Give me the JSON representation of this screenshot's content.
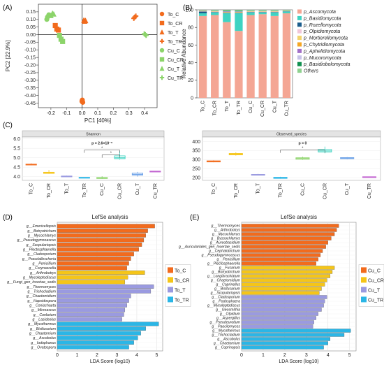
{
  "panels": {
    "A": "(A)",
    "B": "(B)",
    "C": "(C)",
    "D": "(D)",
    "E": "(E)"
  },
  "colors": {
    "To_C": "#f26b1d",
    "To_CR": "#f5c518",
    "To_T": "#9a9ae0",
    "To_TR": "#2bb6e6",
    "Cu_green": "#8cd46a",
    "Cu_C": "#f26b1d",
    "Cu_CR": "#f5c518",
    "Cu_T": "#9a9ae0",
    "Cu_TR": "#2bb6e6"
  },
  "chart_data": [
    {
      "type": "scatter",
      "panel": "A",
      "xlabel": "PC1 [40%]",
      "ylabel": "PC2 [22.9%]",
      "xlim": [
        -0.28,
        0.48
      ],
      "ylim": [
        -0.48,
        0.2
      ],
      "xticks": [
        "-0.2",
        "-0.1",
        "0.0",
        "0.1",
        "0.2",
        "0.3",
        "0.4"
      ],
      "xtick_values": [
        -0.2,
        -0.1,
        0.0,
        0.1,
        0.2,
        0.3,
        0.4
      ],
      "yticks": [
        "0.15",
        "0.10",
        "0.05",
        "0.00",
        "-0.05",
        "-0.10",
        "-0.15",
        "-0.20",
        "-0.25",
        "-0.30",
        "-0.35",
        "-0.40",
        "-0.45"
      ],
      "ytick_values": [
        0.15,
        0.1,
        0.05,
        0.0,
        -0.05,
        -0.1,
        -0.15,
        -0.2,
        -0.25,
        -0.3,
        -0.35,
        -0.4,
        -0.45
      ],
      "series": [
        {
          "name": "To_C",
          "marker": "circle",
          "color": "#f26b1d",
          "points": [
            [
              0.001,
              -0.43
            ],
            [
              0.004,
              -0.445
            ],
            [
              -0.001,
              -0.438
            ]
          ]
        },
        {
          "name": "To_CR",
          "marker": "square",
          "color": "#f26b1d",
          "points": [
            [
              -0.172,
              0.06
            ],
            [
              -0.162,
              0.036
            ],
            [
              -0.152,
              0.03
            ]
          ]
        },
        {
          "name": "To_T",
          "marker": "triangle",
          "color": "#f26b1d",
          "points": [
            [
              0.011,
              0.095
            ],
            [
              0.022,
              0.092
            ],
            [
              0.016,
              0.088
            ]
          ]
        },
        {
          "name": "To_TR",
          "marker": "plus",
          "color": "#f26b1d",
          "points": [
            [
              0.337,
              0.115
            ],
            [
              0.344,
              0.122
            ],
            [
              0.331,
              0.107
            ]
          ]
        },
        {
          "name": "Cu_C",
          "marker": "circle",
          "color": "#8cd46a",
          "points": [
            [
              -0.222,
              0.115
            ],
            [
              -0.226,
              0.1
            ],
            [
              -0.213,
              0.13
            ]
          ]
        },
        {
          "name": "Cu_CR",
          "marker": "square",
          "color": "#8cd46a",
          "points": [
            [
              -0.145,
              -0.005
            ],
            [
              -0.135,
              -0.03
            ],
            [
              -0.125,
              -0.045
            ]
          ]
        },
        {
          "name": "Cu_T",
          "marker": "triangle",
          "color": "#8cd46a",
          "points": [
            [
              -0.19,
              0.14
            ],
            [
              -0.182,
              0.135
            ],
            [
              -0.2,
              0.125
            ]
          ]
        },
        {
          "name": "Cu_TR",
          "marker": "plus",
          "color": "#8cd46a",
          "points": [
            [
              0.398,
              0.005
            ],
            [
              0.41,
              -0.005
            ],
            [
              0.404,
              0.0
            ]
          ]
        }
      ]
    },
    {
      "type": "bar",
      "stacked": true,
      "panel": "B",
      "ylabel": "Relative Abundance",
      "ylim": [
        0,
        100
      ],
      "yticks": [
        "0",
        "20",
        "40",
        "60",
        "80",
        "100"
      ],
      "ytick_values": [
        0,
        20,
        40,
        60,
        80,
        100
      ],
      "categories": [
        "To_C",
        "To_CR",
        "To_T",
        "To_TR",
        "Cu_C",
        "Cu_CR",
        "Cu_T",
        "Cu_TR"
      ],
      "series": [
        {
          "name": "p_Ascomycota",
          "color": "#f4a694",
          "values": [
            93,
            94,
            86,
            76,
            94,
            95,
            93,
            96
          ]
        },
        {
          "name": "p_Basidiomycota",
          "color": "#3fd3c2",
          "values": [
            3,
            3,
            10,
            20,
            3,
            2,
            4,
            2
          ]
        },
        {
          "name": "p_Rozellomycota",
          "color": "#1b5c8c",
          "values": [
            2,
            0.5,
            0.5,
            0.5,
            0.5,
            0.5,
            0.5,
            0.3
          ]
        },
        {
          "name": "p_Olpidiomycota",
          "color": "#f0c6d8",
          "values": [
            0.3,
            0.3,
            0.3,
            0.3,
            0.3,
            0.3,
            0.3,
            0.2
          ]
        },
        {
          "name": "p_Mortierellomycota",
          "color": "#f2d36b",
          "values": [
            0.3,
            0.3,
            0.5,
            0.5,
            0.3,
            0.3,
            0.3,
            0.2
          ]
        },
        {
          "name": "p_Chytridiomycota",
          "color": "#f5a623",
          "values": [
            0.2,
            0.2,
            0.3,
            0.3,
            0.2,
            0.2,
            0.2,
            0.1
          ]
        },
        {
          "name": "p_Aphelidiomycota",
          "color": "#a36fc8",
          "values": [
            0.2,
            0.2,
            0.4,
            0.3,
            0.2,
            0.2,
            0.2,
            0.1
          ]
        },
        {
          "name": "p_Mucoromycota",
          "color": "#c7c2e8",
          "values": [
            0.2,
            0.2,
            0.3,
            0.3,
            0.2,
            0.2,
            0.2,
            0.1
          ]
        },
        {
          "name": "p_Basidiobolomycota",
          "color": "#0f8f4e",
          "values": [
            0.3,
            0.3,
            0.7,
            0.8,
            0.3,
            0.3,
            0.3,
            0.2
          ]
        },
        {
          "name": "Others",
          "color": "#8ed18f",
          "values": [
            0.5,
            1.0,
            1.0,
            1.0,
            1.0,
            1.0,
            1.0,
            0.8
          ]
        }
      ]
    },
    {
      "type": "box",
      "panel": "C-left",
      "title": "Shannon",
      "ylim": [
        3.8,
        6.1
      ],
      "yticks": [
        "4.0",
        "4.5",
        "5.0",
        "5.5",
        "6.0"
      ],
      "ytick_values": [
        4.0,
        4.5,
        5.0,
        5.5,
        6.0
      ],
      "categories": [
        "To_C",
        "To_CR",
        "To_T",
        "To_TR",
        "Cu_C",
        "Cu_CR",
        "Cu_T",
        "Cu_TR"
      ],
      "colors": [
        "#f26b1d",
        "#f5c518",
        "#9a9ae0",
        "#2bb6e6",
        "#8cd46a",
        "#3fd3c2",
        "#6fa3e8",
        "#c060d0"
      ],
      "boxes": [
        {
          "min": 4.6,
          "q1": 4.62,
          "median": 4.64,
          "q3": 4.66,
          "max": 4.7
        },
        {
          "min": 4.15,
          "q1": 4.17,
          "median": 4.2,
          "q3": 4.23,
          "max": 4.35
        },
        {
          "min": 4.0,
          "q1": 4.01,
          "median": 4.02,
          "q3": 4.03,
          "max": 4.05
        },
        {
          "min": 3.93,
          "q1": 3.94,
          "median": 3.95,
          "q3": 3.96,
          "max": 3.97
        },
        {
          "min": 3.88,
          "q1": 3.9,
          "median": 3.92,
          "q3": 3.95,
          "max": 4.02
        },
        {
          "min": 4.9,
          "q1": 4.95,
          "median": 5.0,
          "q3": 5.1,
          "max": 5.35
        },
        {
          "min": 4.0,
          "q1": 4.08,
          "median": 4.12,
          "q3": 4.18,
          "max": 4.25
        },
        {
          "min": 4.26,
          "q1": 4.27,
          "median": 4.28,
          "q3": 4.29,
          "max": 4.3
        }
      ],
      "annotation": "p = 2.6×10⁻⁶",
      "sig_marks": [
        "*",
        "*"
      ]
    },
    {
      "type": "box",
      "panel": "C-right",
      "title": "Observed_species",
      "ylim": [
        185,
        425
      ],
      "yticks": [
        "200",
        "250",
        "300",
        "350",
        "400"
      ],
      "ytick_values": [
        200,
        250,
        300,
        350,
        400
      ],
      "categories": [
        "To_C",
        "To_CR",
        "To_T",
        "To_TR",
        "Cu_C",
        "Cu_CR",
        "Cu_T",
        "Cu_TR"
      ],
      "colors": [
        "#f26b1d",
        "#f5c518",
        "#9a9ae0",
        "#2bb6e6",
        "#8cd46a",
        "#3fd3c2",
        "#6fa3e8",
        "#c060d0"
      ],
      "boxes": [
        {
          "min": 285,
          "q1": 287,
          "median": 290,
          "q3": 293,
          "max": 296
        },
        {
          "min": 322,
          "q1": 326,
          "median": 330,
          "q3": 334,
          "max": 340
        },
        {
          "min": 212,
          "q1": 214,
          "median": 216,
          "q3": 218,
          "max": 221
        },
        {
          "min": 194,
          "q1": 196,
          "median": 199,
          "q3": 202,
          "max": 205
        },
        {
          "min": 298,
          "q1": 302,
          "median": 306,
          "q3": 310,
          "max": 316
        },
        {
          "min": 335,
          "q1": 342,
          "median": 348,
          "q3": 356,
          "max": 372
        },
        {
          "min": 302,
          "q1": 305,
          "median": 308,
          "q3": 311,
          "max": 314
        },
        {
          "min": 202,
          "q1": 203,
          "median": 204,
          "q3": 205,
          "max": 206
        }
      ],
      "annotation": "p = 0",
      "sig_marks": [
        "*"
      ]
    },
    {
      "type": "bar",
      "orientation": "horizontal",
      "panel": "D",
      "title": "LefSe analysis",
      "xlabel": "LDA Score (log10)",
      "xlim": [
        0,
        5.3
      ],
      "xticks": [
        "0",
        "1",
        "2",
        "3",
        "4",
        "5"
      ],
      "xtick_values": [
        0,
        1,
        2,
        3,
        4,
        5
      ],
      "legend": [
        "To_C",
        "To_CR",
        "To_T",
        "To_TR"
      ],
      "legend_colors": [
        "#f26b1d",
        "#f5c518",
        "#9a9ae0",
        "#2bb6e6"
      ],
      "bars": [
        {
          "label": "g__Emericellopsis",
          "group": 0,
          "value": 4.9
        },
        {
          "label": "g__Botryotrichum",
          "group": 0,
          "value": 4.55
        },
        {
          "label": "g__Mycochlamys",
          "group": 0,
          "value": 4.45
        },
        {
          "label": "g__Pseudogymnoascus",
          "group": 0,
          "value": 4.35
        },
        {
          "label": "g__Scopulariopsis",
          "group": 0,
          "value": 4.25
        },
        {
          "label": "g__Plectosphaerella",
          "group": 0,
          "value": 4.1
        },
        {
          "label": "g__Cladosporium",
          "group": 0,
          "value": 3.85
        },
        {
          "label": "g__Pseudallescheria",
          "group": 0,
          "value": 3.7
        },
        {
          "label": "g__Penicillium",
          "group": 0,
          "value": 3.6
        },
        {
          "label": "g__Corynascella",
          "group": 0,
          "value": 3.5
        },
        {
          "label": "g__Arthrobotrys",
          "group": 1,
          "value": 4.4
        },
        {
          "label": "g__Mycoleptodiscus",
          "group": 1,
          "value": 3.55
        },
        {
          "label": "g__Fungi_gen_Incertae_sedis",
          "group": 1,
          "value": 3.4
        },
        {
          "label": "g__Thermomyces",
          "group": 2,
          "value": 4.85
        },
        {
          "label": "g__Trichocladium",
          "group": 2,
          "value": 4.7
        },
        {
          "label": "g__Chaetomidium",
          "group": 2,
          "value": 3.7
        },
        {
          "label": "g__Hapsidospora",
          "group": 2,
          "value": 3.6
        },
        {
          "label": "g__Coniochaeta",
          "group": 2,
          "value": 3.5
        },
        {
          "label": "g__Microascus",
          "group": 2,
          "value": 3.4
        },
        {
          "label": "g__Conlarium",
          "group": 2,
          "value": 3.35
        },
        {
          "label": "g__Lasiobolus",
          "group": 2,
          "value": 3.25
        },
        {
          "label": "g__Mycothermus",
          "group": 3,
          "value": 5.1
        },
        {
          "label": "g__Bisifusarium",
          "group": 3,
          "value": 4.45
        },
        {
          "label": "g__Chaetomium",
          "group": 3,
          "value": 4.2
        },
        {
          "label": "g__Ascobolus",
          "group": 3,
          "value": 4.05
        },
        {
          "label": "g__Iodophanus",
          "group": 3,
          "value": 3.85
        },
        {
          "label": "g__Ovatospora",
          "group": 3,
          "value": 3.6
        }
      ]
    },
    {
      "type": "bar",
      "orientation": "horizontal",
      "panel": "E",
      "title": "LefSe analysis",
      "xlabel": "LDA Score (log10)",
      "xlim": [
        0,
        5.3
      ],
      "xticks": [
        "0",
        "1",
        "2",
        "3",
        "4",
        "5"
      ],
      "xtick_values": [
        0,
        1,
        2,
        3,
        4,
        5
      ],
      "legend": [
        "Cu_C",
        "Cu_CR",
        "Cu_T",
        "Cu_TR"
      ],
      "legend_colors": [
        "#f26b1d",
        "#f5c518",
        "#9a9ae0",
        "#2bb6e6"
      ],
      "bars": [
        {
          "label": "g__Thermomyces",
          "group": 0,
          "value": 4.5
        },
        {
          "label": "g__Arthrobotrys",
          "group": 0,
          "value": 4.4
        },
        {
          "label": "g__Mycochlamys",
          "group": 0,
          "value": 4.3
        },
        {
          "label": "g__Byssochlamys",
          "group": 0,
          "value": 4.15
        },
        {
          "label": "g__Aureobasidium",
          "group": 0,
          "value": 4.0
        },
        {
          "label": "g__Auriculariales_gen_Incertae_sedis",
          "group": 0,
          "value": 3.9
        },
        {
          "label": "g__Cephalotrichum",
          "group": 0,
          "value": 3.75
        },
        {
          "label": "g__Pseudogymnoascus",
          "group": 0,
          "value": 3.65
        },
        {
          "label": "g__Penicillium",
          "group": 0,
          "value": 3.55
        },
        {
          "label": "g__Plectosphaerella",
          "group": 0,
          "value": 3.45
        },
        {
          "label": "g__Fusarium",
          "group": 1,
          "value": 4.3
        },
        {
          "label": "g__Botryotrichum",
          "group": 1,
          "value": 4.2
        },
        {
          "label": "g__Longibrachiatum",
          "group": 1,
          "value": 4.1
        },
        {
          "label": "g__Chaetomidium",
          "group": 1,
          "value": 3.95
        },
        {
          "label": "g__Coprinellus",
          "group": 1,
          "value": 3.85
        },
        {
          "label": "g__Bisifusarium",
          "group": 1,
          "value": 3.7
        },
        {
          "label": "g__Scopulariopsis",
          "group": 1,
          "value": 3.6
        },
        {
          "label": "g__Cladosporium",
          "group": 2,
          "value": 3.95
        },
        {
          "label": "g__Podosphaera",
          "group": 2,
          "value": 3.85
        },
        {
          "label": "g__Mycoleptodiscus",
          "group": 2,
          "value": 3.8
        },
        {
          "label": "g__Geosmithia",
          "group": 2,
          "value": 3.7
        },
        {
          "label": "g__Olpidium",
          "group": 2,
          "value": 3.55
        },
        {
          "label": "g__Aspergillus",
          "group": 2,
          "value": 3.45
        },
        {
          "label": "g__Pseudeurotium",
          "group": 2,
          "value": 3.35
        },
        {
          "label": "g__Paecilomyces",
          "group": 2,
          "value": 3.3
        },
        {
          "label": "g__Mycothermus",
          "group": 3,
          "value": 5.05
        },
        {
          "label": "g__Trichocladium",
          "group": 3,
          "value": 4.75
        },
        {
          "label": "g__Ascobolus",
          "group": 3,
          "value": 4.1
        },
        {
          "label": "g__Chaetomium",
          "group": 3,
          "value": 4.0
        },
        {
          "label": "g__Coprinopsis",
          "group": 3,
          "value": 3.8
        }
      ]
    }
  ]
}
